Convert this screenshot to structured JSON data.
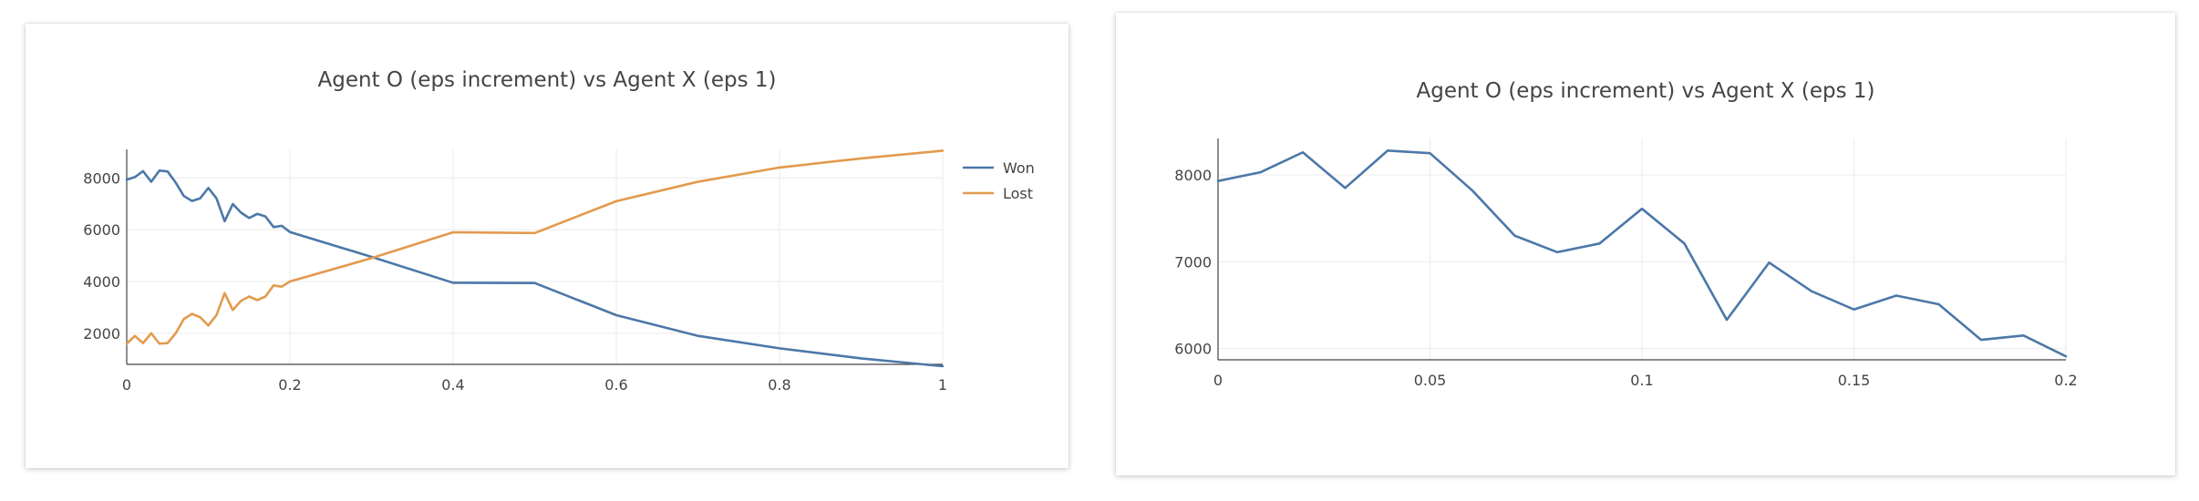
{
  "chart_data": [
    {
      "type": "line",
      "title": "Agent O (eps increment) vs Agent X (eps 1)",
      "xlabel": "",
      "ylabel": "",
      "xlim": [
        0,
        1
      ],
      "ylim": [
        800,
        9100
      ],
      "x_ticks": [
        0,
        0.2,
        0.4,
        0.6,
        0.8,
        1
      ],
      "x_tick_labels": [
        "0",
        "0.2",
        "0.4",
        "0.6",
        "0.8",
        "1"
      ],
      "y_ticks": [
        2000,
        4000,
        6000,
        8000
      ],
      "y_tick_labels": [
        "2000",
        "4000",
        "6000",
        "8000"
      ],
      "grid": true,
      "legend_position": "top-right",
      "series": [
        {
          "name": "Won",
          "color": "#4c78a8",
          "x": [
            0,
            0.01,
            0.02,
            0.03,
            0.04,
            0.05,
            0.06,
            0.07,
            0.08,
            0.09,
            0.1,
            0.11,
            0.12,
            0.13,
            0.14,
            0.15,
            0.16,
            0.17,
            0.18,
            0.19,
            0.2,
            0.3,
            0.4,
            0.5,
            0.6,
            0.7,
            0.8,
            0.9,
            1
          ],
          "y": [
            7930,
            8030,
            8260,
            7850,
            8280,
            8250,
            7820,
            7300,
            7110,
            7210,
            7610,
            7210,
            6330,
            6990,
            6660,
            6450,
            6610,
            6510,
            6100,
            6150,
            5910,
            4950,
            3950,
            3940,
            2700,
            1900,
            1420,
            1030,
            730
          ]
        },
        {
          "name": "Lost",
          "color": "#e39a4d",
          "x": [
            0,
            0.01,
            0.02,
            0.03,
            0.04,
            0.05,
            0.06,
            0.07,
            0.08,
            0.09,
            0.1,
            0.11,
            0.12,
            0.13,
            0.14,
            0.15,
            0.16,
            0.17,
            0.18,
            0.19,
            0.2,
            0.3,
            0.4,
            0.5,
            0.6,
            0.7,
            0.8,
            0.9,
            1
          ],
          "y": [
            1600,
            1900,
            1620,
            2000,
            1600,
            1620,
            2000,
            2550,
            2750,
            2620,
            2300,
            2700,
            3550,
            2900,
            3250,
            3420,
            3280,
            3420,
            3850,
            3800,
            4000,
            4900,
            5900,
            5870,
            7100,
            7850,
            8400,
            8750,
            9050
          ]
        }
      ]
    },
    {
      "type": "line",
      "title": "Agent O (eps increment) vs Agent X (eps 1)",
      "xlabel": "",
      "ylabel": "",
      "xlim": [
        0,
        0.2
      ],
      "ylim": [
        5870,
        8420
      ],
      "x_ticks": [
        0,
        0.05,
        0.1,
        0.15,
        0.2
      ],
      "x_tick_labels": [
        "0",
        "0.05",
        "0.1",
        "0.15",
        "0.2"
      ],
      "y_ticks": [
        6000,
        7000,
        8000
      ],
      "y_tick_labels": [
        "6000",
        "7000",
        "8000"
      ],
      "grid": true,
      "legend_position": "none",
      "series": [
        {
          "color": "#4c78a8",
          "x": [
            0,
            0.01,
            0.02,
            0.03,
            0.04,
            0.05,
            0.06,
            0.07,
            0.08,
            0.09,
            0.1,
            0.11,
            0.12,
            0.13,
            0.14,
            0.15,
            0.16,
            0.17,
            0.18,
            0.19,
            0.2
          ],
          "y": [
            7930,
            8030,
            8260,
            7850,
            8280,
            8250,
            7820,
            7300,
            7110,
            7210,
            7610,
            7210,
            6330,
            6990,
            6660,
            6450,
            6610,
            6510,
            6100,
            6150,
            5910
          ]
        }
      ]
    }
  ]
}
